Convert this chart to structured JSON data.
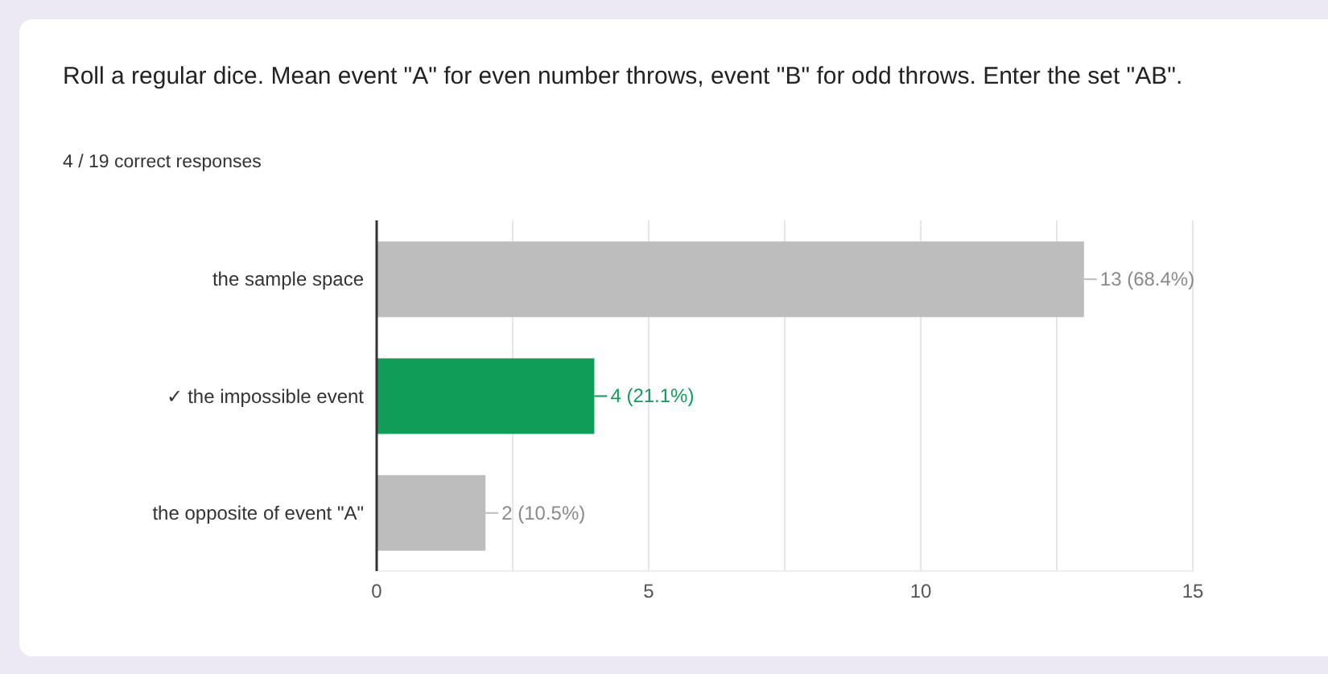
{
  "chart_data": {
    "type": "bar",
    "orientation": "horizontal",
    "title": "Roll a regular dice. Mean event \"A\" for even number throws, event \"B\" for odd throws. Enter the set \"AB\".",
    "subtitle": "4 / 19 correct responses",
    "categories": [
      "the sample space",
      "✓ the impossible event",
      "the opposite of event \"A\""
    ],
    "values": [
      13,
      4,
      2
    ],
    "colors": [
      "#bdbdbd",
      "#0f9d58",
      "#bdbdbd"
    ],
    "value_labels": [
      "13 (68.4%)",
      "4 (21.1%)",
      "2 (10.5%)"
    ],
    "xlim": [
      0,
      15
    ],
    "xticks": [
      0,
      {
        "value": 2.5,
        "label": null
      },
      5,
      {
        "value": 7.5,
        "label": null
      },
      10,
      {
        "value": 12.5,
        "label": null
      },
      15
    ],
    "grid": "x"
  }
}
